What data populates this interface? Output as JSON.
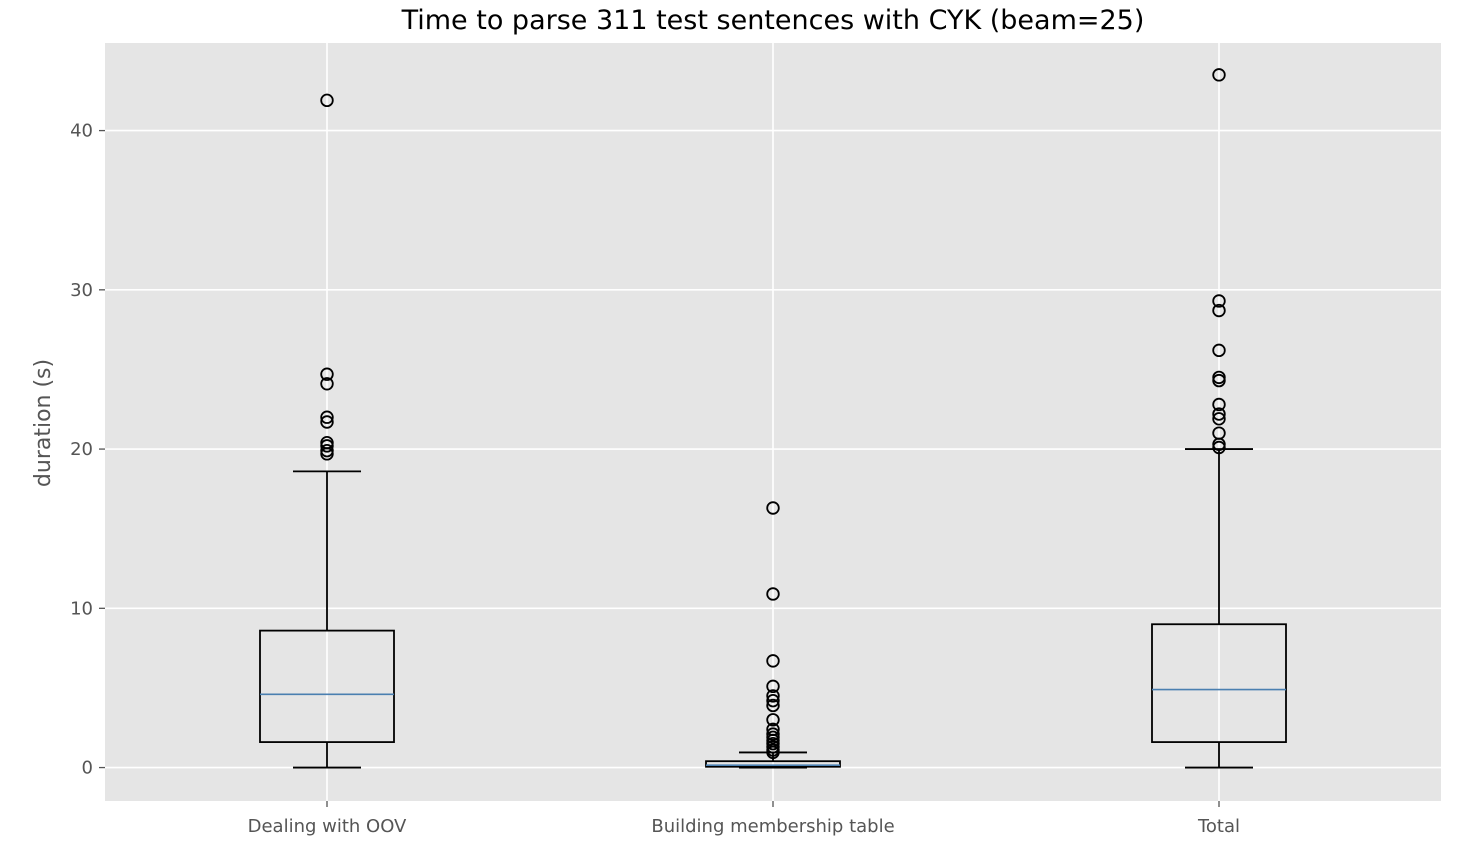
{
  "chart_data": {
    "type": "box",
    "title": "Time to parse 311 test sentences with CYK (beam=25)",
    "xlabel": "",
    "ylabel": "duration (s)",
    "ylim": [
      -2.1,
      45.5
    ],
    "yticks": [
      0,
      10,
      20,
      30,
      40
    ],
    "grid": true,
    "categories": [
      "Dealing with OOV",
      "Building membership table",
      "Total"
    ],
    "boxes": [
      {
        "whisker_low": 0.0,
        "q1": 1.6,
        "median": 4.6,
        "q3": 8.6,
        "whisker_high": 18.6,
        "outliers": [
          19.7,
          19.9,
          20.2,
          20.4,
          21.7,
          22.0,
          24.1,
          24.7,
          41.9
        ]
      },
      {
        "whisker_low": 0.0,
        "q1": 0.05,
        "median": 0.15,
        "q3": 0.4,
        "whisker_high": 0.95,
        "outliers": [
          0.95,
          1.1,
          1.3,
          1.5,
          1.7,
          1.9,
          2.1,
          2.4,
          3.0,
          3.9,
          4.2,
          4.5,
          5.1,
          6.7,
          10.9,
          16.3
        ]
      },
      {
        "whisker_low": 0.0,
        "q1": 1.6,
        "median": 4.9,
        "q3": 9.0,
        "whisker_high": 20.0,
        "outliers": [
          20.1,
          20.3,
          21.0,
          21.9,
          22.2,
          22.8,
          24.3,
          24.5,
          26.2,
          28.7,
          29.3,
          43.5
        ]
      }
    ],
    "colors": {
      "plot_background": "#e5e5e5",
      "grid": "#ffffff",
      "box": "#000000",
      "median": "#4a7fb0",
      "tick_text": "#555555",
      "title_text": "#000000"
    }
  }
}
